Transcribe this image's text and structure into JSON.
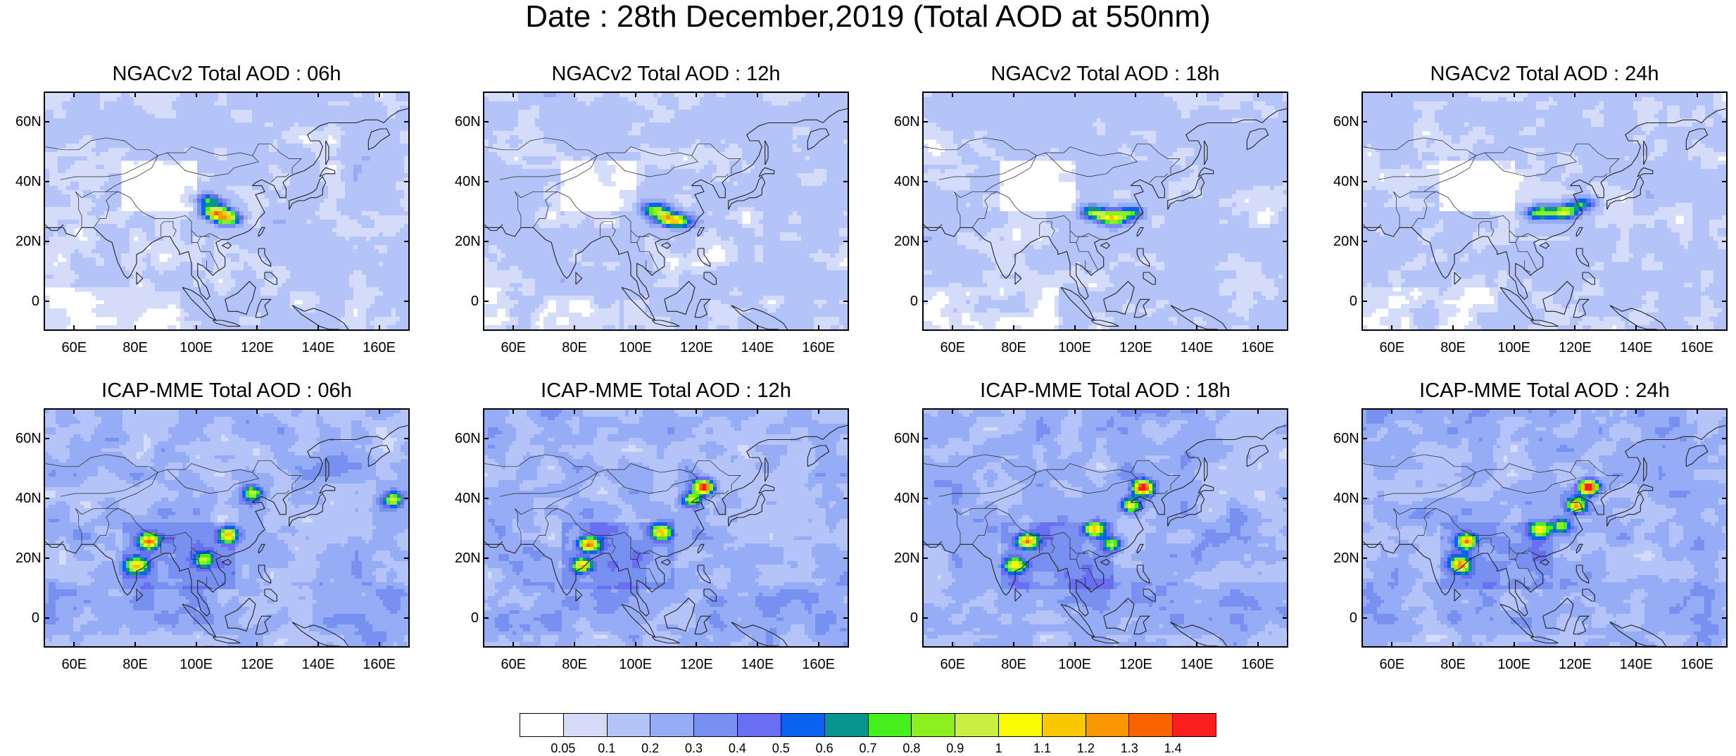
{
  "title": "Date : 28th December,2019 (Total AOD at 550nm)",
  "panels": [
    {
      "title": "NGACv2 Total AOD : 06h",
      "model": "NGACv2",
      "lead": "06h",
      "hotspots": [
        [
          106,
          30,
          1.0
        ],
        [
          110,
          28,
          0.8
        ],
        [
          104,
          34,
          0.6
        ]
      ]
    },
    {
      "title": "NGACv2 Total AOD : 12h",
      "model": "NGACv2",
      "lead": "12h",
      "hotspots": [
        [
          110,
          28,
          0.9
        ],
        [
          106,
          31,
          0.7
        ],
        [
          114,
          27,
          0.6
        ]
      ]
    },
    {
      "title": "NGACv2 Total AOD : 18h",
      "model": "NGACv2",
      "lead": "18h",
      "hotspots": [
        [
          112,
          28,
          0.9
        ],
        [
          106,
          30,
          0.7
        ],
        [
          118,
          30,
          0.6
        ]
      ]
    },
    {
      "title": "NGACv2 Total AOD : 24h",
      "model": "NGACv2",
      "lead": "24h",
      "hotspots": [
        [
          116,
          30,
          0.9
        ],
        [
          108,
          30,
          0.7
        ],
        [
          122,
          33,
          0.6
        ]
      ]
    },
    {
      "title": "ICAP-MME Total AOD : 06h",
      "model": "ICAP-MME",
      "lead": "06h",
      "hotspots": [
        [
          84,
          26,
          1.0
        ],
        [
          80,
          18,
          0.9
        ],
        [
          110,
          28,
          0.9
        ],
        [
          118,
          42,
          0.7
        ],
        [
          164,
          40,
          0.7
        ],
        [
          102,
          20,
          0.6
        ]
      ]
    },
    {
      "title": "ICAP-MME Total AOD : 12h",
      "model": "ICAP-MME",
      "lead": "12h",
      "hotspots": [
        [
          122,
          44,
          1.3
        ],
        [
          84,
          25,
          1.0
        ],
        [
          82,
          18,
          0.9
        ],
        [
          108,
          29,
          0.9
        ],
        [
          118,
          40,
          0.7
        ]
      ]
    },
    {
      "title": "ICAP-MME Total AOD : 18h",
      "model": "ICAP-MME",
      "lead": "18h",
      "hotspots": [
        [
          122,
          44,
          1.4
        ],
        [
          118,
          38,
          0.9
        ],
        [
          84,
          26,
          1.0
        ],
        [
          80,
          18,
          0.8
        ],
        [
          106,
          30,
          0.9
        ],
        [
          112,
          25,
          0.7
        ]
      ]
    },
    {
      "title": "ICAP-MME Total AOD : 24h",
      "model": "ICAP-MME",
      "lead": "24h",
      "hotspots": [
        [
          124,
          44,
          1.4
        ],
        [
          120,
          38,
          1.0
        ],
        [
          84,
          26,
          1.0
        ],
        [
          82,
          18,
          0.9
        ],
        [
          108,
          30,
          0.8
        ],
        [
          115,
          31,
          0.7
        ]
      ]
    }
  ],
  "axes": {
    "lon_range": [
      50,
      170
    ],
    "lat_range": [
      -10,
      70
    ],
    "lon_ticks": [
      "60E",
      "80E",
      "100E",
      "120E",
      "140E",
      "160E"
    ],
    "lon_tick_values": [
      60,
      80,
      100,
      120,
      140,
      160
    ],
    "lat_ticks": [
      "0",
      "20N",
      "40N",
      "60N"
    ],
    "lat_tick_values": [
      0,
      20,
      40,
      60
    ]
  },
  "colorbar": {
    "labels": [
      "0.05",
      "0.1",
      "0.2",
      "0.3",
      "0.4",
      "0.5",
      "0.6",
      "0.7",
      "0.8",
      "0.9",
      "1",
      "1.1",
      "1.2",
      "1.3",
      "1.4"
    ],
    "levels": [
      0.05,
      0.1,
      0.2,
      0.3,
      0.4,
      0.5,
      0.6,
      0.7,
      0.8,
      0.9,
      1.0,
      1.1,
      1.2,
      1.3,
      1.4
    ],
    "colors": [
      "#ffffff",
      "#d4dcfa",
      "#b4c4f8",
      "#96acf4",
      "#7890f0",
      "#6a6ef0",
      "#0a62f0",
      "#0a9490",
      "#46f01c",
      "#8cf020",
      "#c8f040",
      "#fafa00",
      "#fac800",
      "#fa9600",
      "#fa6400",
      "#fa1e1e"
    ]
  }
}
